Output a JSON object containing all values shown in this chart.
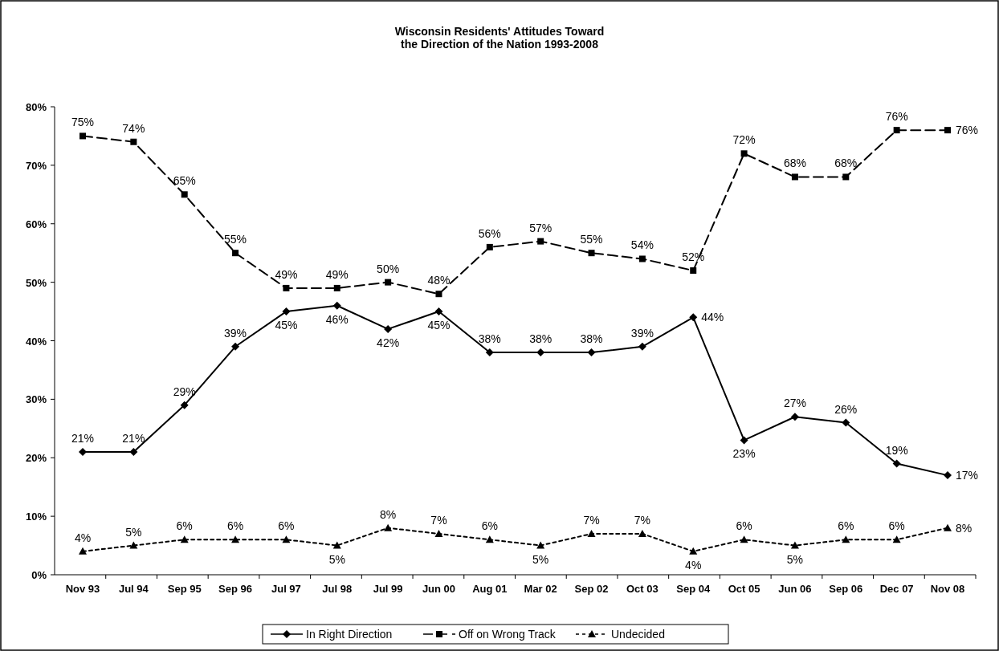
{
  "chart_data": {
    "type": "line",
    "title": "Wisconsin Residents' Attitudes Toward\nthe Direction of the Nation 1993-2008",
    "categories": [
      "Nov 93",
      "Jul 94",
      "Sep 95",
      "Sep 96",
      "Jul 97",
      "Jul 98",
      "Jul 99",
      "Jun 00",
      "Aug 01",
      "Mar 02",
      "Sep 02",
      "Oct 03",
      "Sep 04",
      "Oct 05",
      "Jun 06",
      "Sep 06",
      "Dec 07",
      "Nov 08"
    ],
    "series": [
      {
        "name": "In Right Direction",
        "color": "#000000",
        "marker": "diamond",
        "line_style": "solid",
        "values": [
          21,
          21,
          29,
          39,
          45,
          46,
          42,
          45,
          38,
          38,
          38,
          39,
          44,
          23,
          27,
          26,
          19,
          17
        ],
        "value_labels": [
          "21%",
          "21%",
          "29%",
          "39%",
          "45%",
          "46%",
          "42%",
          "45%",
          "38%",
          "38%",
          "38%",
          "39%",
          "44%",
          "23%",
          "27%",
          "26%",
          "19%",
          "17%"
        ]
      },
      {
        "name": "Off on Wrong Track",
        "color": "#000000",
        "marker": "square",
        "line_style": "dashed",
        "values": [
          75,
          74,
          65,
          55,
          49,
          49,
          50,
          48,
          56,
          57,
          55,
          54,
          52,
          72,
          68,
          68,
          76,
          76
        ],
        "value_labels": [
          "75%",
          "74%",
          "65%",
          "55%",
          "49%",
          "49%",
          "50%",
          "48%",
          "56%",
          "57%",
          "55%",
          "54%",
          "52%",
          "72%",
          "68%",
          "68%",
          "76%",
          "76%"
        ]
      },
      {
        "name": "Undecided",
        "color": "#000000",
        "marker": "triangle",
        "line_style": "dotted",
        "values": [
          4,
          5,
          6,
          6,
          6,
          5,
          8,
          7,
          6,
          5,
          7,
          7,
          4,
          6,
          5,
          6,
          6,
          8
        ],
        "value_labels": [
          "4%",
          "5%",
          "6%",
          "6%",
          "6%",
          "5%",
          "8%",
          "7%",
          "6%",
          "5%",
          "7%",
          "7%",
          "4%",
          "6%",
          "5%",
          "6%",
          "6%",
          "8%"
        ]
      }
    ],
    "ylim": [
      0,
      80
    ],
    "yticks": [
      {
        "value": 0,
        "label": "0%"
      },
      {
        "value": 10,
        "label": "10%"
      },
      {
        "value": 20,
        "label": "20%"
      },
      {
        "value": 30,
        "label": "30%"
      },
      {
        "value": 40,
        "label": "40%"
      },
      {
        "value": 50,
        "label": "50%"
      },
      {
        "value": 60,
        "label": "60%"
      },
      {
        "value": 70,
        "label": "70%"
      },
      {
        "value": 80,
        "label": "80%"
      }
    ],
    "legend": "bottom"
  }
}
